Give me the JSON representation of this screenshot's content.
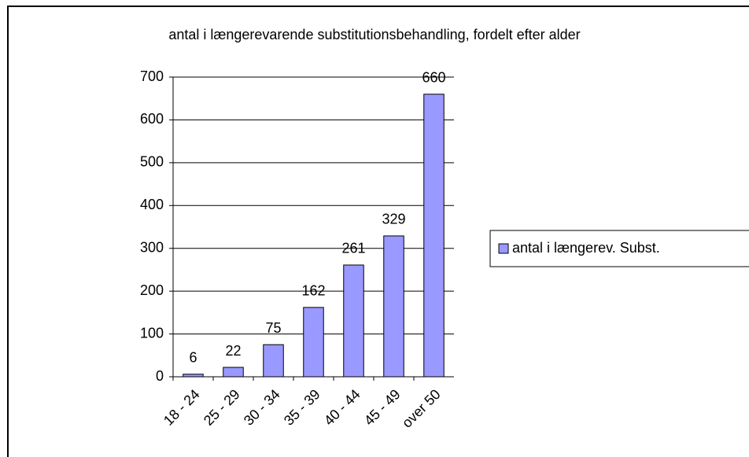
{
  "chart_data": {
    "type": "bar",
    "title": "antal i længerevarende substitutionsbehandling, fordelt efter alder",
    "categories": [
      "18 - 24",
      "25 - 29",
      "30 - 34",
      "35 - 39",
      "40 - 44",
      "45 - 49",
      "over 50"
    ],
    "series": [
      {
        "name": "antal i længerev. Subst.",
        "color": "#9999ff",
        "values": [
          6,
          22,
          75,
          162,
          261,
          329,
          660
        ]
      }
    ],
    "ylim": [
      0,
      700
    ],
    "yticks": [
      0,
      100,
      200,
      300,
      400,
      500,
      600,
      700
    ],
    "grid": true,
    "legend": "right"
  }
}
